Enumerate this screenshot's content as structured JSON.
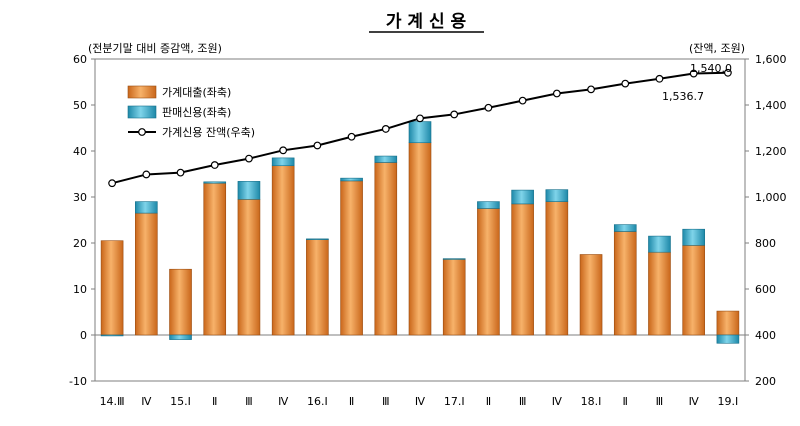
{
  "chart_data": {
    "type": "bar",
    "title": "가 계 신 용",
    "left_unit": "(전분기말 대비 증감액, 조원)",
    "right_unit": "(잔액, 조원)",
    "categories": [
      "14.Ⅲ",
      "Ⅳ",
      "15.Ⅰ",
      "Ⅱ",
      "Ⅲ",
      "Ⅳ",
      "16.Ⅰ",
      "Ⅱ",
      "Ⅲ",
      "Ⅳ",
      "17.Ⅰ",
      "Ⅱ",
      "Ⅲ",
      "Ⅳ",
      "18.Ⅰ",
      "Ⅱ",
      "Ⅲ",
      "Ⅳ",
      "19.Ⅰ"
    ],
    "series": [
      {
        "name": "가계대출(좌축)",
        "axis": "left",
        "kind": "stacked-bar",
        "color": "#e8882c",
        "values": [
          20.5,
          26.5,
          14.3,
          33,
          29.5,
          36.8,
          20.8,
          33.5,
          37.5,
          41.8,
          16.5,
          27.5,
          28.5,
          29,
          17.5,
          22.5,
          18,
          19.5,
          5.2
        ]
      },
      {
        "name": "판매신용(좌축)",
        "axis": "left",
        "kind": "stacked-bar",
        "color": "#2aa6c6",
        "values": [
          -0.2,
          2.5,
          -1.0,
          0.3,
          3.9,
          1.7,
          0.1,
          0.6,
          1.4,
          4.6,
          0.1,
          1.5,
          3.0,
          2.6,
          0,
          1.5,
          3.5,
          3.5,
          -1.8
        ]
      },
      {
        "name": "가계신용 잔액(우축)",
        "axis": "right",
        "kind": "line",
        "color": "#000000",
        "values": [
          1060,
          1098,
          1106,
          1139,
          1167,
          1203,
          1224,
          1262,
          1296,
          1342,
          1359,
          1388,
          1419,
          1450,
          1468,
          1493,
          1514,
          1536.7,
          1540.0
        ]
      }
    ],
    "y_left": {
      "min": -10,
      "max": 60,
      "ticks": [
        "-10",
        "0",
        "10",
        "20",
        "30",
        "40",
        "50",
        "60"
      ]
    },
    "y_right": {
      "min": 200,
      "max": 1600,
      "ticks": [
        "200",
        "400",
        "600",
        "800",
        "1,000",
        "1,200",
        "1,400",
        "1,600"
      ]
    },
    "annotations": [
      "1,540.0",
      "1,536.7"
    ],
    "legend_position": "top-left",
    "grid": false
  }
}
